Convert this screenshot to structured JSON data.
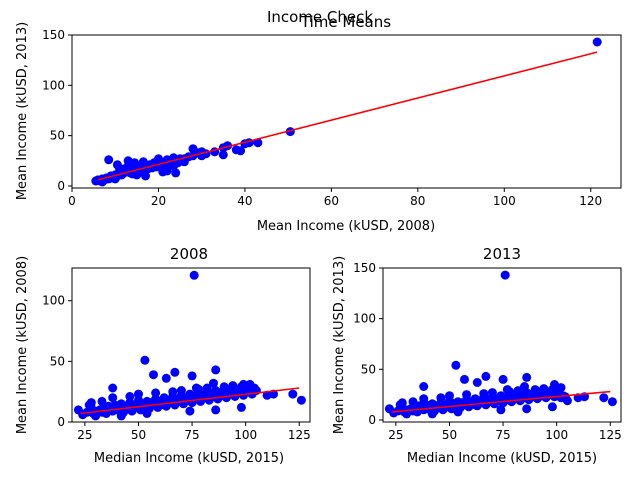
{
  "figure": {
    "suptitle": "Income Check",
    "overlap_title": "Time Means"
  },
  "chart_data": [
    {
      "type": "scatter",
      "title": "",
      "xlabel": "Mean Income (kUSD, 2008)",
      "ylabel": "Mean Income (kUSD, 2013)",
      "xlim": [
        0,
        127
      ],
      "ylim": [
        -2,
        150
      ],
      "xticks": [
        0,
        20,
        40,
        60,
        80,
        100,
        120
      ],
      "yticks": [
        0,
        50,
        100,
        150
      ],
      "grid": false,
      "point_color": "#0000ff",
      "line_color": "#ff0000",
      "fit_line": {
        "x": [
          6,
          121.5
        ],
        "y": [
          6,
          133
        ]
      },
      "points": {
        "x": [
          5.5,
          6,
          6.5,
          7,
          7.5,
          8,
          8.5,
          9,
          9.5,
          10,
          10.5,
          11,
          11.5,
          12,
          12.5,
          13,
          13.5,
          14,
          14.5,
          15,
          15.5,
          16,
          16.5,
          17,
          17.5,
          18,
          18.5,
          19,
          19.5,
          20,
          20.5,
          21,
          21.5,
          22,
          22.5,
          23,
          23.5,
          24,
          24.5,
          25,
          26,
          27,
          28,
          29,
          30,
          31,
          33,
          35,
          36,
          38,
          40,
          43,
          50.5,
          8.5,
          10.5,
          11,
          13,
          14,
          14.5,
          16,
          16.5,
          17,
          18,
          20,
          21,
          22,
          24,
          26,
          28,
          30,
          35,
          39,
          41,
          7,
          9,
          10,
          12,
          13,
          15,
          17,
          19,
          22,
          23.5,
          121.5
        ],
        "y": [
          5,
          6,
          5,
          7,
          6,
          8,
          7,
          9,
          8,
          11,
          10,
          12,
          11,
          13,
          14,
          15,
          13,
          16,
          15,
          17,
          14,
          18,
          16,
          19,
          17,
          20,
          18,
          21,
          19,
          22,
          20,
          23,
          21,
          24,
          22,
          25,
          20,
          26,
          23,
          27,
          27,
          29,
          30,
          33,
          30,
          32,
          34,
          38,
          40,
          36,
          42,
          43,
          54,
          26,
          21,
          17,
          25,
          12,
          23,
          20,
          24,
          10,
          21,
          27,
          14,
          26,
          13,
          24,
          37,
          34,
          31,
          35,
          43,
          4,
          10,
          7,
          17,
          20,
          11,
          15,
          23,
          15,
          28,
          143
        ]
      }
    },
    {
      "type": "scatter",
      "title": "2008",
      "xlabel": "Median Income (kUSD, 2015)",
      "ylabel": "Mean Income (kUSD, 2008)",
      "xlim": [
        19,
        130
      ],
      "ylim": [
        0,
        127
      ],
      "xticks": [
        25,
        50,
        75,
        100,
        125
      ],
      "yticks": [
        0,
        50,
        100
      ],
      "grid": false,
      "point_color": "#0000ff",
      "line_color": "#ff0000",
      "fit_line": {
        "x": [
          23,
          125
        ],
        "y": [
          7,
          28
        ]
      },
      "points": {
        "x": [
          22,
          24,
          26,
          27,
          28,
          29,
          30,
          31,
          32,
          33,
          34,
          35,
          36,
          37,
          38,
          39,
          40,
          41,
          42,
          43,
          44,
          45,
          46,
          47,
          48,
          49,
          50,
          51,
          52,
          53,
          54,
          55,
          56,
          57,
          58,
          59,
          60,
          61,
          62,
          63,
          64,
          65,
          66,
          67,
          68,
          69,
          70,
          71,
          72,
          73,
          74,
          75,
          76,
          77,
          78,
          79,
          80,
          81,
          82,
          83,
          84,
          85,
          86,
          87,
          88,
          89,
          90,
          91,
          92,
          93,
          94,
          95,
          96,
          97,
          98,
          99,
          100,
          101,
          102,
          103,
          104,
          105,
          110,
          113,
          122,
          126,
          28,
          33,
          38,
          42,
          46,
          50,
          54,
          58,
          62,
          66,
          70,
          74,
          78,
          82,
          86,
          90,
          94,
          98,
          102,
          53,
          57,
          63,
          67,
          75,
          77,
          85,
          38,
          76,
          86,
          99
        ],
        "y": [
          10,
          6,
          8,
          14,
          16,
          7,
          5,
          9,
          10,
          8,
          12,
          7,
          13,
          11,
          9,
          14,
          10,
          12,
          15,
          8,
          13,
          11,
          16,
          9,
          14,
          12,
          18,
          10,
          15,
          13,
          17,
          11,
          16,
          14,
          19,
          12,
          17,
          15,
          20,
          13,
          18,
          16,
          21,
          14,
          19,
          17,
          22,
          15,
          20,
          18,
          23,
          16,
          21,
          19,
          24,
          17,
          22,
          20,
          25,
          18,
          23,
          21,
          26,
          19,
          24,
          22,
          27,
          20,
          25,
          23,
          28,
          21,
          26,
          24,
          29,
          22,
          27,
          25,
          30,
          23,
          28,
          26,
          22,
          23,
          23,
          18,
          12,
          17,
          20,
          5,
          21,
          23,
          7,
          24,
          14,
          25,
          26,
          9,
          27,
          28,
          10,
          29,
          30,
          12,
          31,
          51,
          39,
          36,
          41,
          38,
          28,
          32,
          28,
          121,
          43,
          31
        ]
      }
    },
    {
      "type": "scatter",
      "title": "2013",
      "xlabel": "Median Income (kUSD, 2015)",
      "ylabel": "Mean Income (kUSD, 2013)",
      "xlim": [
        19,
        130
      ],
      "ylim": [
        -2,
        150
      ],
      "xticks": [
        25,
        50,
        75,
        100,
        125
      ],
      "yticks": [
        0,
        50,
        100,
        150
      ],
      "grid": false,
      "point_color": "#0000ff",
      "line_color": "#ff0000",
      "fit_line": {
        "x": [
          23,
          125
        ],
        "y": [
          8,
          28
        ]
      },
      "points": {
        "x": [
          22,
          24,
          26,
          27,
          28,
          29,
          30,
          31,
          32,
          33,
          34,
          35,
          36,
          37,
          38,
          39,
          40,
          41,
          42,
          43,
          44,
          45,
          46,
          47,
          48,
          49,
          50,
          51,
          52,
          53,
          54,
          55,
          56,
          57,
          58,
          59,
          60,
          61,
          62,
          63,
          64,
          65,
          66,
          67,
          68,
          69,
          70,
          71,
          72,
          73,
          74,
          75,
          76,
          77,
          78,
          79,
          80,
          81,
          82,
          83,
          84,
          85,
          86,
          87,
          88,
          89,
          90,
          91,
          92,
          93,
          94,
          95,
          96,
          97,
          98,
          99,
          100,
          101,
          102,
          103,
          104,
          105,
          110,
          113,
          122,
          126,
          28,
          33,
          38,
          42,
          46,
          50,
          54,
          58,
          62,
          66,
          70,
          74,
          78,
          82,
          86,
          90,
          94,
          98,
          102,
          53,
          57,
          63,
          67,
          75,
          77,
          85,
          38,
          76,
          86,
          99
        ],
        "y": [
          11,
          7,
          9,
          15,
          17,
          8,
          6,
          10,
          11,
          9,
          13,
          8,
          14,
          12,
          10,
          15,
          11,
          13,
          16,
          9,
          14,
          12,
          17,
          10,
          15,
          13,
          19,
          11,
          16,
          14,
          18,
          12,
          17,
          15,
          20,
          13,
          18,
          16,
          21,
          14,
          19,
          17,
          22,
          15,
          20,
          18,
          23,
          16,
          21,
          19,
          24,
          17,
          22,
          20,
          25,
          18,
          23,
          21,
          26,
          19,
          24,
          22,
          27,
          20,
          25,
          23,
          28,
          21,
          26,
          24,
          29,
          22,
          27,
          25,
          30,
          23,
          28,
          26,
          22,
          24,
          23,
          19,
          22,
          23,
          22,
          18,
          13,
          18,
          21,
          6,
          22,
          24,
          8,
          25,
          15,
          26,
          27,
          10,
          28,
          29,
          11,
          30,
          31,
          13,
          32,
          54,
          40,
          37,
          43,
          40,
          30,
          33,
          33,
          143,
          42,
          35
        ]
      }
    }
  ]
}
